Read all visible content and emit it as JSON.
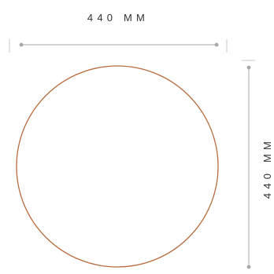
{
  "product_dimensions": {
    "width_label": "440 MM",
    "height_label": "440 MM"
  },
  "colors": {
    "outline": "#b86b3e",
    "dimension_line": "#b7b7b7",
    "dimension_dot": "#a8a8a8",
    "label_text": "#333333"
  },
  "shape": "circle"
}
